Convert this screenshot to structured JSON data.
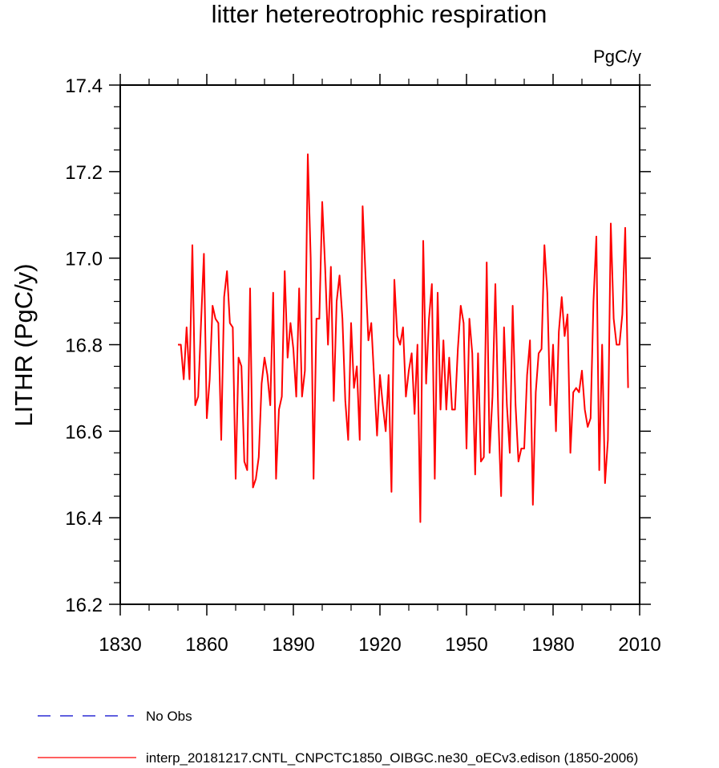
{
  "chart_data": {
    "type": "line",
    "title": "litter hetereotrophic respiration",
    "units_label": "PgC/y",
    "ylabel": "LITHR  (PgC/y)",
    "xlabel": "",
    "xlim": [
      1830,
      2010
    ],
    "ylim": [
      16.2,
      17.4
    ],
    "xticks": [
      1830,
      1860,
      1890,
      1920,
      1950,
      1980,
      2010
    ],
    "xtick_labels": [
      "1830",
      "1860",
      "1890",
      "1920",
      "1950",
      "1980",
      "2010"
    ],
    "yticks": [
      16.2,
      16.4,
      16.6,
      16.8,
      17.0,
      17.2,
      17.4
    ],
    "ytick_labels": [
      "16.2",
      "16.4",
      "16.6",
      "16.8",
      "17.0",
      "17.2",
      "17.4"
    ],
    "x_minor_step": 10,
    "y_minor_step": 0.05,
    "grid": false,
    "legend_position": "bottom-left",
    "series": [
      {
        "name": "No Obs",
        "color": "#0000cc",
        "style": "dashed",
        "x": [],
        "values": []
      },
      {
        "name": "interp_20181217.CNTL_CNPCTC1850_OIBGC.ne30_oECv3.edison (1850-2006)",
        "color": "#ff0000",
        "style": "solid",
        "x": [
          1850,
          1851,
          1852,
          1853,
          1854,
          1855,
          1856,
          1857,
          1858,
          1859,
          1860,
          1861,
          1862,
          1863,
          1864,
          1865,
          1866,
          1867,
          1868,
          1869,
          1870,
          1871,
          1872,
          1873,
          1874,
          1875,
          1876,
          1877,
          1878,
          1879,
          1880,
          1881,
          1882,
          1883,
          1884,
          1885,
          1886,
          1887,
          1888,
          1889,
          1890,
          1891,
          1892,
          1893,
          1894,
          1895,
          1896,
          1897,
          1898,
          1899,
          1900,
          1901,
          1902,
          1903,
          1904,
          1905,
          1906,
          1907,
          1908,
          1909,
          1910,
          1911,
          1912,
          1913,
          1914,
          1915,
          1916,
          1917,
          1918,
          1919,
          1920,
          1921,
          1922,
          1923,
          1924,
          1925,
          1926,
          1927,
          1928,
          1929,
          1930,
          1931,
          1932,
          1933,
          1934,
          1935,
          1936,
          1937,
          1938,
          1939,
          1940,
          1941,
          1942,
          1943,
          1944,
          1945,
          1946,
          1947,
          1948,
          1949,
          1950,
          1951,
          1952,
          1953,
          1954,
          1955,
          1956,
          1957,
          1958,
          1959,
          1960,
          1961,
          1962,
          1963,
          1964,
          1965,
          1966,
          1967,
          1968,
          1969,
          1970,
          1971,
          1972,
          1973,
          1974,
          1975,
          1976,
          1977,
          1978,
          1979,
          1980,
          1981,
          1982,
          1983,
          1984,
          1985,
          1986,
          1987,
          1988,
          1989,
          1990,
          1991,
          1992,
          1993,
          1994,
          1995,
          1996,
          1997,
          1998,
          1999,
          2000,
          2001,
          2002,
          2003,
          2004,
          2005,
          2006
        ],
        "values": [
          16.8,
          16.8,
          16.72,
          16.84,
          16.72,
          17.03,
          16.66,
          16.68,
          16.85,
          17.01,
          16.63,
          16.72,
          16.89,
          16.86,
          16.85,
          16.58,
          16.91,
          16.97,
          16.85,
          16.84,
          16.49,
          16.77,
          16.75,
          16.53,
          16.51,
          16.93,
          16.47,
          16.49,
          16.54,
          16.71,
          16.77,
          16.73,
          16.66,
          16.92,
          16.49,
          16.65,
          16.68,
          16.97,
          16.77,
          16.85,
          16.79,
          16.68,
          16.93,
          16.68,
          16.74,
          17.24,
          17.0,
          16.49,
          16.86,
          16.86,
          17.13,
          16.98,
          16.8,
          16.98,
          16.67,
          16.9,
          16.96,
          16.86,
          16.67,
          16.58,
          16.85,
          16.7,
          16.75,
          16.58,
          17.12,
          16.96,
          16.81,
          16.85,
          16.72,
          16.59,
          16.73,
          16.66,
          16.6,
          16.73,
          16.46,
          16.95,
          16.82,
          16.8,
          16.84,
          16.68,
          16.74,
          16.78,
          16.64,
          16.8,
          16.39,
          17.04,
          16.71,
          16.86,
          16.94,
          16.49,
          16.92,
          16.65,
          16.81,
          16.65,
          16.77,
          16.65,
          16.65,
          16.79,
          16.89,
          16.85,
          16.56,
          16.86,
          16.78,
          16.5,
          16.78,
          16.53,
          16.54,
          16.99,
          16.55,
          16.68,
          16.94,
          16.64,
          16.45,
          16.84,
          16.66,
          16.55,
          16.89,
          16.66,
          16.53,
          16.56,
          16.56,
          16.73,
          16.81,
          16.43,
          16.69,
          16.78,
          16.79,
          17.03,
          16.92,
          16.66,
          16.8,
          16.6,
          16.83,
          16.91,
          16.82,
          16.87,
          16.55,
          16.69,
          16.7,
          16.69,
          16.74,
          16.65,
          16.61,
          16.63,
          16.9,
          17.05,
          16.51,
          16.8,
          16.48,
          16.58,
          17.08,
          16.86,
          16.8,
          16.8,
          16.87,
          17.07,
          16.7
        ]
      }
    ]
  }
}
